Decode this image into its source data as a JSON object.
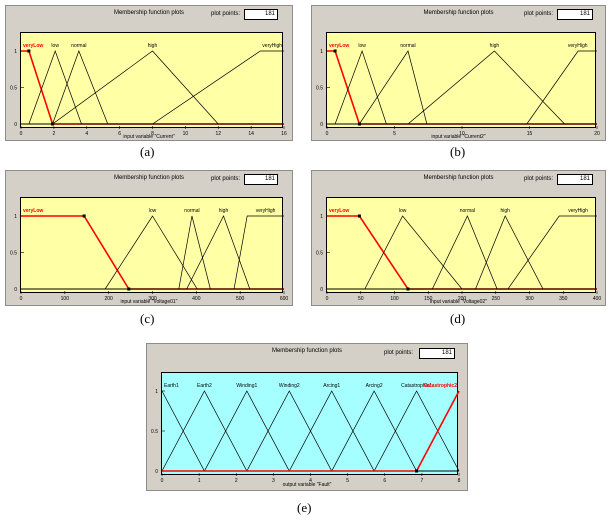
{
  "panels": [
    {
      "id": "a",
      "caption": "(a)",
      "title": "Membership function plots",
      "plot_points_label": "plot points:",
      "plot_points_value": "181",
      "xlabel": "input variable \"Current\"",
      "bg": "#ffffa6",
      "xticks": [
        "0",
        "2",
        "4",
        "6",
        "8",
        "10",
        "12",
        "14",
        "16"
      ],
      "yticks": [
        "0",
        "0.5",
        "1"
      ],
      "mfs": [
        "veryLow",
        "low",
        "normal",
        "high",
        "veryHigh"
      ],
      "selected": "veryLow"
    },
    {
      "id": "b",
      "caption": "(b)",
      "title": "Membership function plots",
      "plot_points_label": "plot points:",
      "plot_points_value": "181",
      "xlabel": "input variable \"Current2\"",
      "bg": "#ffffa6",
      "xticks": [
        "0",
        "5",
        "10",
        "15",
        "20"
      ],
      "yticks": [
        "0",
        "0.5",
        "1"
      ],
      "mfs": [
        "veryLow",
        "low",
        "normal",
        "high",
        "veryHigh"
      ],
      "selected": "veryLow"
    },
    {
      "id": "c",
      "caption": "(c)",
      "title": "Membership function plots",
      "plot_points_label": "plot points:",
      "plot_points_value": "181",
      "xlabel": "input variable \"Voltage01\"",
      "bg": "#ffffa6",
      "xticks": [
        "0",
        "100",
        "200",
        "300",
        "400",
        "500",
        "600"
      ],
      "yticks": [
        "0",
        "0.5",
        "1"
      ],
      "mfs": [
        "veryLow",
        "low",
        "normal",
        "high",
        "veryHigh"
      ],
      "selected": "veryLow"
    },
    {
      "id": "d",
      "caption": "(d)",
      "title": "Membership function plots",
      "plot_points_label": "plot points:",
      "plot_points_value": "181",
      "xlabel": "input variable \"Voltage02\"",
      "bg": "#ffffa6",
      "xticks": [
        "0",
        "50",
        "100",
        "150",
        "200",
        "250",
        "300",
        "350",
        "400"
      ],
      "yticks": [
        "0",
        "0.5",
        "1"
      ],
      "mfs": [
        "veryLow",
        "low",
        "normal",
        "high",
        "veryHigh"
      ],
      "selected": "veryLow"
    },
    {
      "id": "e",
      "caption": "(e)",
      "title": "Membership function plots",
      "plot_points_label": "plot points:",
      "plot_points_value": "181",
      "xlabel": "output variable \"Fault\"",
      "bg": "#a6ffff",
      "xticks": [
        "0",
        "1",
        "2",
        "3",
        "4",
        "5",
        "6",
        "7",
        "8"
      ],
      "yticks": [
        "0",
        "0.5",
        "1"
      ],
      "mfs": [
        "Earth1",
        "Earth2",
        "Winding1",
        "Winding2",
        "Arcing1",
        "Arcing2",
        "Catastrophic1",
        "Catastrophic2"
      ],
      "selected": "Catastrophic2"
    }
  ],
  "colors": {
    "curve": "#000000",
    "selected": "#ff0000",
    "panel": "#d4d0c8"
  }
}
